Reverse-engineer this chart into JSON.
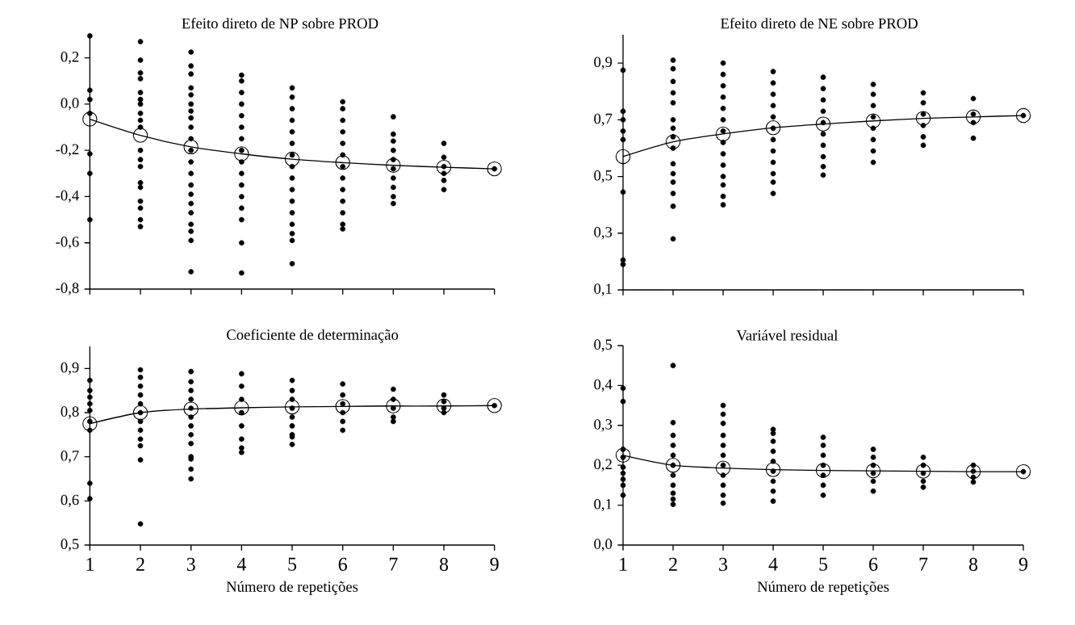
{
  "chart_data": [
    {
      "type": "scatter",
      "title": "Efeito direto de NP sobre PROD",
      "xlim": [
        1,
        9
      ],
      "xticks": [
        1,
        2,
        3,
        4,
        5,
        6,
        7,
        8,
        9
      ],
      "ylim": [
        -0.8,
        0.3
      ],
      "yticks": [
        {
          "value": -0.8,
          "label": "-0,8"
        },
        {
          "value": -0.6,
          "label": "-0,6"
        },
        {
          "value": -0.4,
          "label": "-0,4"
        },
        {
          "value": -0.2,
          "label": "-0,2"
        },
        {
          "value": 0.0,
          "label": "0,0"
        },
        {
          "value": 0.2,
          "label": "0,2"
        }
      ],
      "tick_labels": "y",
      "series": [
        {
          "type": "scatter",
          "color": "#000000",
          "marker": "circle",
          "x": [
            1,
            1,
            1,
            1,
            1,
            1,
            1,
            2,
            2,
            2,
            2,
            2,
            2,
            2,
            2,
            2,
            2,
            2,
            2,
            2,
            2,
            2,
            2,
            2,
            2,
            2,
            3,
            3,
            3,
            3,
            3,
            3,
            3,
            3,
            3,
            3,
            3,
            3,
            3,
            3,
            3,
            3,
            3,
            3,
            3,
            3,
            3,
            4,
            4,
            4,
            4,
            4,
            4,
            4,
            4,
            4,
            4,
            4,
            4,
            4,
            4,
            4,
            4,
            5,
            5,
            5,
            5,
            5,
            5,
            5,
            5,
            5,
            5,
            5,
            5,
            5,
            5,
            5,
            5,
            6,
            6,
            6,
            6,
            6,
            6,
            6,
            6,
            6,
            6,
            6,
            6,
            6,
            7,
            7,
            7,
            7,
            7,
            7,
            7,
            7,
            7,
            7,
            8,
            8,
            8,
            8,
            8,
            8,
            9
          ],
          "values": [
            0.295,
            0.06,
            0.02,
            -0.04,
            -0.215,
            -0.3,
            -0.5,
            0.27,
            0.19,
            0.135,
            0.11,
            0.05,
            0.02,
            0.0,
            -0.04,
            -0.07,
            -0.1,
            -0.2,
            -0.24,
            -0.27,
            -0.34,
            -0.36,
            -0.42,
            -0.45,
            -0.5,
            -0.53,
            0.225,
            0.165,
            0.13,
            0.07,
            0.04,
            0.0,
            -0.03,
            -0.06,
            -0.1,
            -0.15,
            -0.2,
            -0.25,
            -0.3,
            -0.35,
            -0.39,
            -0.43,
            -0.47,
            -0.52,
            -0.55,
            -0.59,
            -0.725,
            0.125,
            0.1,
            0.05,
            0.0,
            -0.05,
            -0.1,
            -0.15,
            -0.2,
            -0.25,
            -0.3,
            -0.35,
            -0.4,
            -0.45,
            -0.5,
            -0.6,
            -0.73,
            0.07,
            0.03,
            -0.02,
            -0.07,
            -0.12,
            -0.17,
            -0.22,
            -0.27,
            -0.32,
            -0.37,
            -0.42,
            -0.47,
            -0.52,
            -0.56,
            -0.59,
            -0.69,
            0.01,
            -0.02,
            -0.07,
            -0.12,
            -0.17,
            -0.22,
            -0.27,
            -0.32,
            -0.37,
            -0.42,
            -0.47,
            -0.52,
            -0.54,
            -0.055,
            -0.13,
            -0.16,
            -0.2,
            -0.24,
            -0.28,
            -0.32,
            -0.36,
            -0.4,
            -0.43,
            -0.17,
            -0.23,
            -0.27,
            -0.3,
            -0.33,
            -0.37,
            -0.28
          ]
        },
        {
          "type": "line",
          "color": "#000000",
          "marker": "circle",
          "x": [
            1,
            2,
            3,
            4,
            5,
            6,
            7,
            8,
            9
          ],
          "values": [
            -0.065,
            -0.135,
            -0.185,
            -0.215,
            -0.238,
            -0.253,
            -0.265,
            -0.273,
            -0.28
          ]
        }
      ]
    },
    {
      "type": "scatter",
      "title": "Efeito direto de NE sobre PROD",
      "xlim": [
        1,
        9
      ],
      "xticks": [
        1,
        2,
        3,
        4,
        5,
        6,
        7,
        8,
        9
      ],
      "ylim": [
        0.1,
        1.0
      ],
      "yticks": [
        {
          "value": 0.1,
          "label": "0,1"
        },
        {
          "value": 0.3,
          "label": "0,3"
        },
        {
          "value": 0.5,
          "label": "0,5"
        },
        {
          "value": 0.7,
          "label": "0,7"
        },
        {
          "value": 0.9,
          "label": "0,9"
        }
      ],
      "tick_labels": "y",
      "series": [
        {
          "type": "scatter",
          "color": "#000000",
          "marker": "circle",
          "x": [
            1,
            1,
            1,
            1,
            1,
            1,
            1,
            1,
            2,
            2,
            2,
            2,
            2,
            2,
            2,
            2,
            2,
            2,
            2,
            2,
            2,
            2,
            2,
            3,
            3,
            3,
            3,
            3,
            3,
            3,
            3,
            3,
            3,
            3,
            3,
            3,
            3,
            4,
            4,
            4,
            4,
            4,
            4,
            4,
            4,
            4,
            4,
            4,
            4,
            5,
            5,
            5,
            5,
            5,
            5,
            5,
            5,
            5,
            5,
            6,
            6,
            6,
            6,
            6,
            6,
            6,
            6,
            7,
            7,
            7,
            7,
            7,
            7,
            8,
            8,
            8,
            8,
            9
          ],
          "values": [
            0.875,
            0.73,
            0.7,
            0.66,
            0.63,
            0.445,
            0.205,
            0.19,
            0.91,
            0.88,
            0.835,
            0.795,
            0.76,
            0.7,
            0.67,
            0.64,
            0.6,
            0.545,
            0.51,
            0.48,
            0.44,
            0.395,
            0.28,
            0.9,
            0.86,
            0.82,
            0.78,
            0.74,
            0.7,
            0.66,
            0.62,
            0.58,
            0.54,
            0.5,
            0.47,
            0.43,
            0.4,
            0.87,
            0.83,
            0.79,
            0.75,
            0.71,
            0.67,
            0.63,
            0.59,
            0.55,
            0.51,
            0.48,
            0.44,
            0.85,
            0.81,
            0.77,
            0.73,
            0.69,
            0.65,
            0.61,
            0.57,
            0.535,
            0.505,
            0.825,
            0.79,
            0.75,
            0.71,
            0.67,
            0.63,
            0.59,
            0.55,
            0.795,
            0.76,
            0.72,
            0.68,
            0.64,
            0.61,
            0.775,
            0.72,
            0.69,
            0.635,
            0.715
          ]
        },
        {
          "type": "line",
          "color": "#000000",
          "marker": "circle",
          "x": [
            1,
            2,
            3,
            4,
            5,
            6,
            7,
            8,
            9
          ],
          "values": [
            0.57,
            0.622,
            0.65,
            0.672,
            0.685,
            0.696,
            0.705,
            0.71,
            0.715
          ]
        }
      ]
    },
    {
      "type": "scatter",
      "title": "Coeficiente de determinação",
      "xlabel": "Número de repetições",
      "xlim": [
        1,
        9
      ],
      "xticks": [
        1,
        2,
        3,
        4,
        5,
        6,
        7,
        8,
        9
      ],
      "ylim": [
        0.5,
        0.95
      ],
      "yticks": [
        {
          "value": 0.5,
          "label": "0,5"
        },
        {
          "value": 0.6,
          "label": "0,6"
        },
        {
          "value": 0.7,
          "label": "0,7"
        },
        {
          "value": 0.8,
          "label": "0,8"
        },
        {
          "value": 0.9,
          "label": "0,9"
        }
      ],
      "series": [
        {
          "type": "scatter",
          "color": "#000000",
          "marker": "circle",
          "x": [
            1,
            1,
            1,
            1,
            1,
            1,
            1,
            1,
            1,
            2,
            2,
            2,
            2,
            2,
            2,
            2,
            2,
            2,
            2,
            2,
            2,
            3,
            3,
            3,
            3,
            3,
            3,
            3,
            3,
            3,
            3,
            3,
            3,
            3,
            4,
            4,
            4,
            4,
            4,
            4,
            4,
            4,
            5,
            5,
            5,
            5,
            5,
            5,
            5,
            5,
            5,
            6,
            6,
            6,
            6,
            6,
            6,
            7,
            7,
            7,
            7,
            7,
            8,
            8,
            8,
            8,
            9
          ],
          "values": [
            0.873,
            0.85,
            0.835,
            0.82,
            0.805,
            0.78,
            0.76,
            0.64,
            0.605,
            0.897,
            0.88,
            0.86,
            0.84,
            0.82,
            0.8,
            0.78,
            0.76,
            0.74,
            0.725,
            0.693,
            0.548,
            0.893,
            0.87,
            0.85,
            0.83,
            0.81,
            0.79,
            0.77,
            0.75,
            0.73,
            0.7,
            0.695,
            0.672,
            0.65,
            0.888,
            0.86,
            0.83,
            0.8,
            0.77,
            0.74,
            0.72,
            0.71,
            0.873,
            0.85,
            0.83,
            0.81,
            0.79,
            0.77,
            0.75,
            0.745,
            0.728,
            0.865,
            0.84,
            0.82,
            0.8,
            0.78,
            0.76,
            0.853,
            0.83,
            0.81,
            0.79,
            0.78,
            0.84,
            0.825,
            0.81,
            0.8,
            0.816
          ]
        },
        {
          "type": "line",
          "color": "#000000",
          "marker": "circle",
          "x": [
            1,
            2,
            3,
            4,
            5,
            6,
            7,
            8,
            9
          ],
          "values": [
            0.775,
            0.8,
            0.808,
            0.811,
            0.813,
            0.814,
            0.815,
            0.815,
            0.816
          ]
        }
      ]
    },
    {
      "type": "scatter",
      "title": "Variável residual",
      "xlabel": "Número de repetições",
      "xlim": [
        1,
        9
      ],
      "xticks": [
        1,
        2,
        3,
        4,
        5,
        6,
        7,
        8,
        9
      ],
      "ylim": [
        0.0,
        0.5
      ],
      "yticks": [
        {
          "value": 0.0,
          "label": "0,0"
        },
        {
          "value": 0.1,
          "label": "0,1"
        },
        {
          "value": 0.2,
          "label": "0,2"
        },
        {
          "value": 0.3,
          "label": "0,3"
        },
        {
          "value": 0.4,
          "label": "0,4"
        },
        {
          "value": 0.5,
          "label": "0,5"
        }
      ],
      "series": [
        {
          "type": "scatter",
          "color": "#000000",
          "marker": "circle",
          "x": [
            1,
            1,
            1,
            1,
            1,
            1,
            1,
            1,
            1,
            2,
            2,
            2,
            2,
            2,
            2,
            2,
            2,
            2,
            2,
            2,
            3,
            3,
            3,
            3,
            3,
            3,
            3,
            3,
            3,
            3,
            3,
            4,
            4,
            4,
            4,
            4,
            4,
            4,
            4,
            4,
            5,
            5,
            5,
            5,
            5,
            5,
            5,
            6,
            6,
            6,
            6,
            6,
            6,
            7,
            7,
            7,
            7,
            7,
            8,
            8,
            8,
            8,
            9
          ],
          "values": [
            0.393,
            0.36,
            0.24,
            0.22,
            0.195,
            0.18,
            0.165,
            0.15,
            0.125,
            0.45,
            0.307,
            0.275,
            0.25,
            0.225,
            0.2,
            0.175,
            0.15,
            0.13,
            0.115,
            0.102,
            0.35,
            0.328,
            0.305,
            0.275,
            0.25,
            0.225,
            0.2,
            0.175,
            0.15,
            0.125,
            0.105,
            0.29,
            0.28,
            0.26,
            0.235,
            0.21,
            0.185,
            0.16,
            0.135,
            0.11,
            0.27,
            0.25,
            0.225,
            0.2,
            0.175,
            0.15,
            0.125,
            0.24,
            0.22,
            0.2,
            0.18,
            0.16,
            0.135,
            0.22,
            0.2,
            0.18,
            0.16,
            0.145,
            0.2,
            0.185,
            0.17,
            0.158,
            0.184
          ]
        },
        {
          "type": "line",
          "color": "#000000",
          "marker": "circle",
          "x": [
            1,
            2,
            3,
            4,
            5,
            6,
            7,
            8,
            9
          ],
          "values": [
            0.225,
            0.2,
            0.193,
            0.189,
            0.187,
            0.186,
            0.185,
            0.184,
            0.184
          ]
        }
      ]
    }
  ]
}
